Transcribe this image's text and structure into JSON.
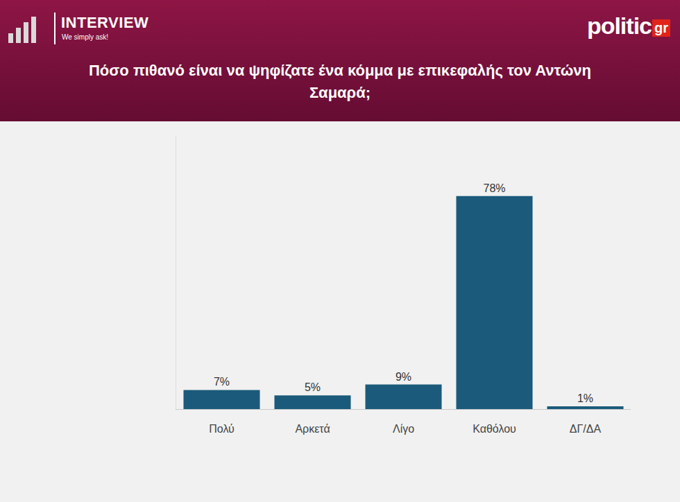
{
  "header": {
    "brand": "INTERVIEW",
    "tagline": "We simply ask!",
    "source": "politic",
    "source_suffix": "gr"
  },
  "chart_data": {
    "type": "bar",
    "title": "Πόσο πιθανό είναι να ψηφίζατε ένα κόμμα με επικεφαλής τον Αντώνη Σαμαρά;",
    "categories": [
      "Πολύ",
      "Αρκετά",
      "Λίγο",
      "Καθόλου",
      "ΔΓ/ΔΑ"
    ],
    "values": [
      7,
      5,
      9,
      78,
      1
    ],
    "value_labels": [
      "7%",
      "5%",
      "9%",
      "78%",
      "1%"
    ],
    "color": "#1b5a7a",
    "ylim": [
      0,
      100
    ],
    "data_labels": true,
    "tick_labels": "x",
    "grid": false
  }
}
